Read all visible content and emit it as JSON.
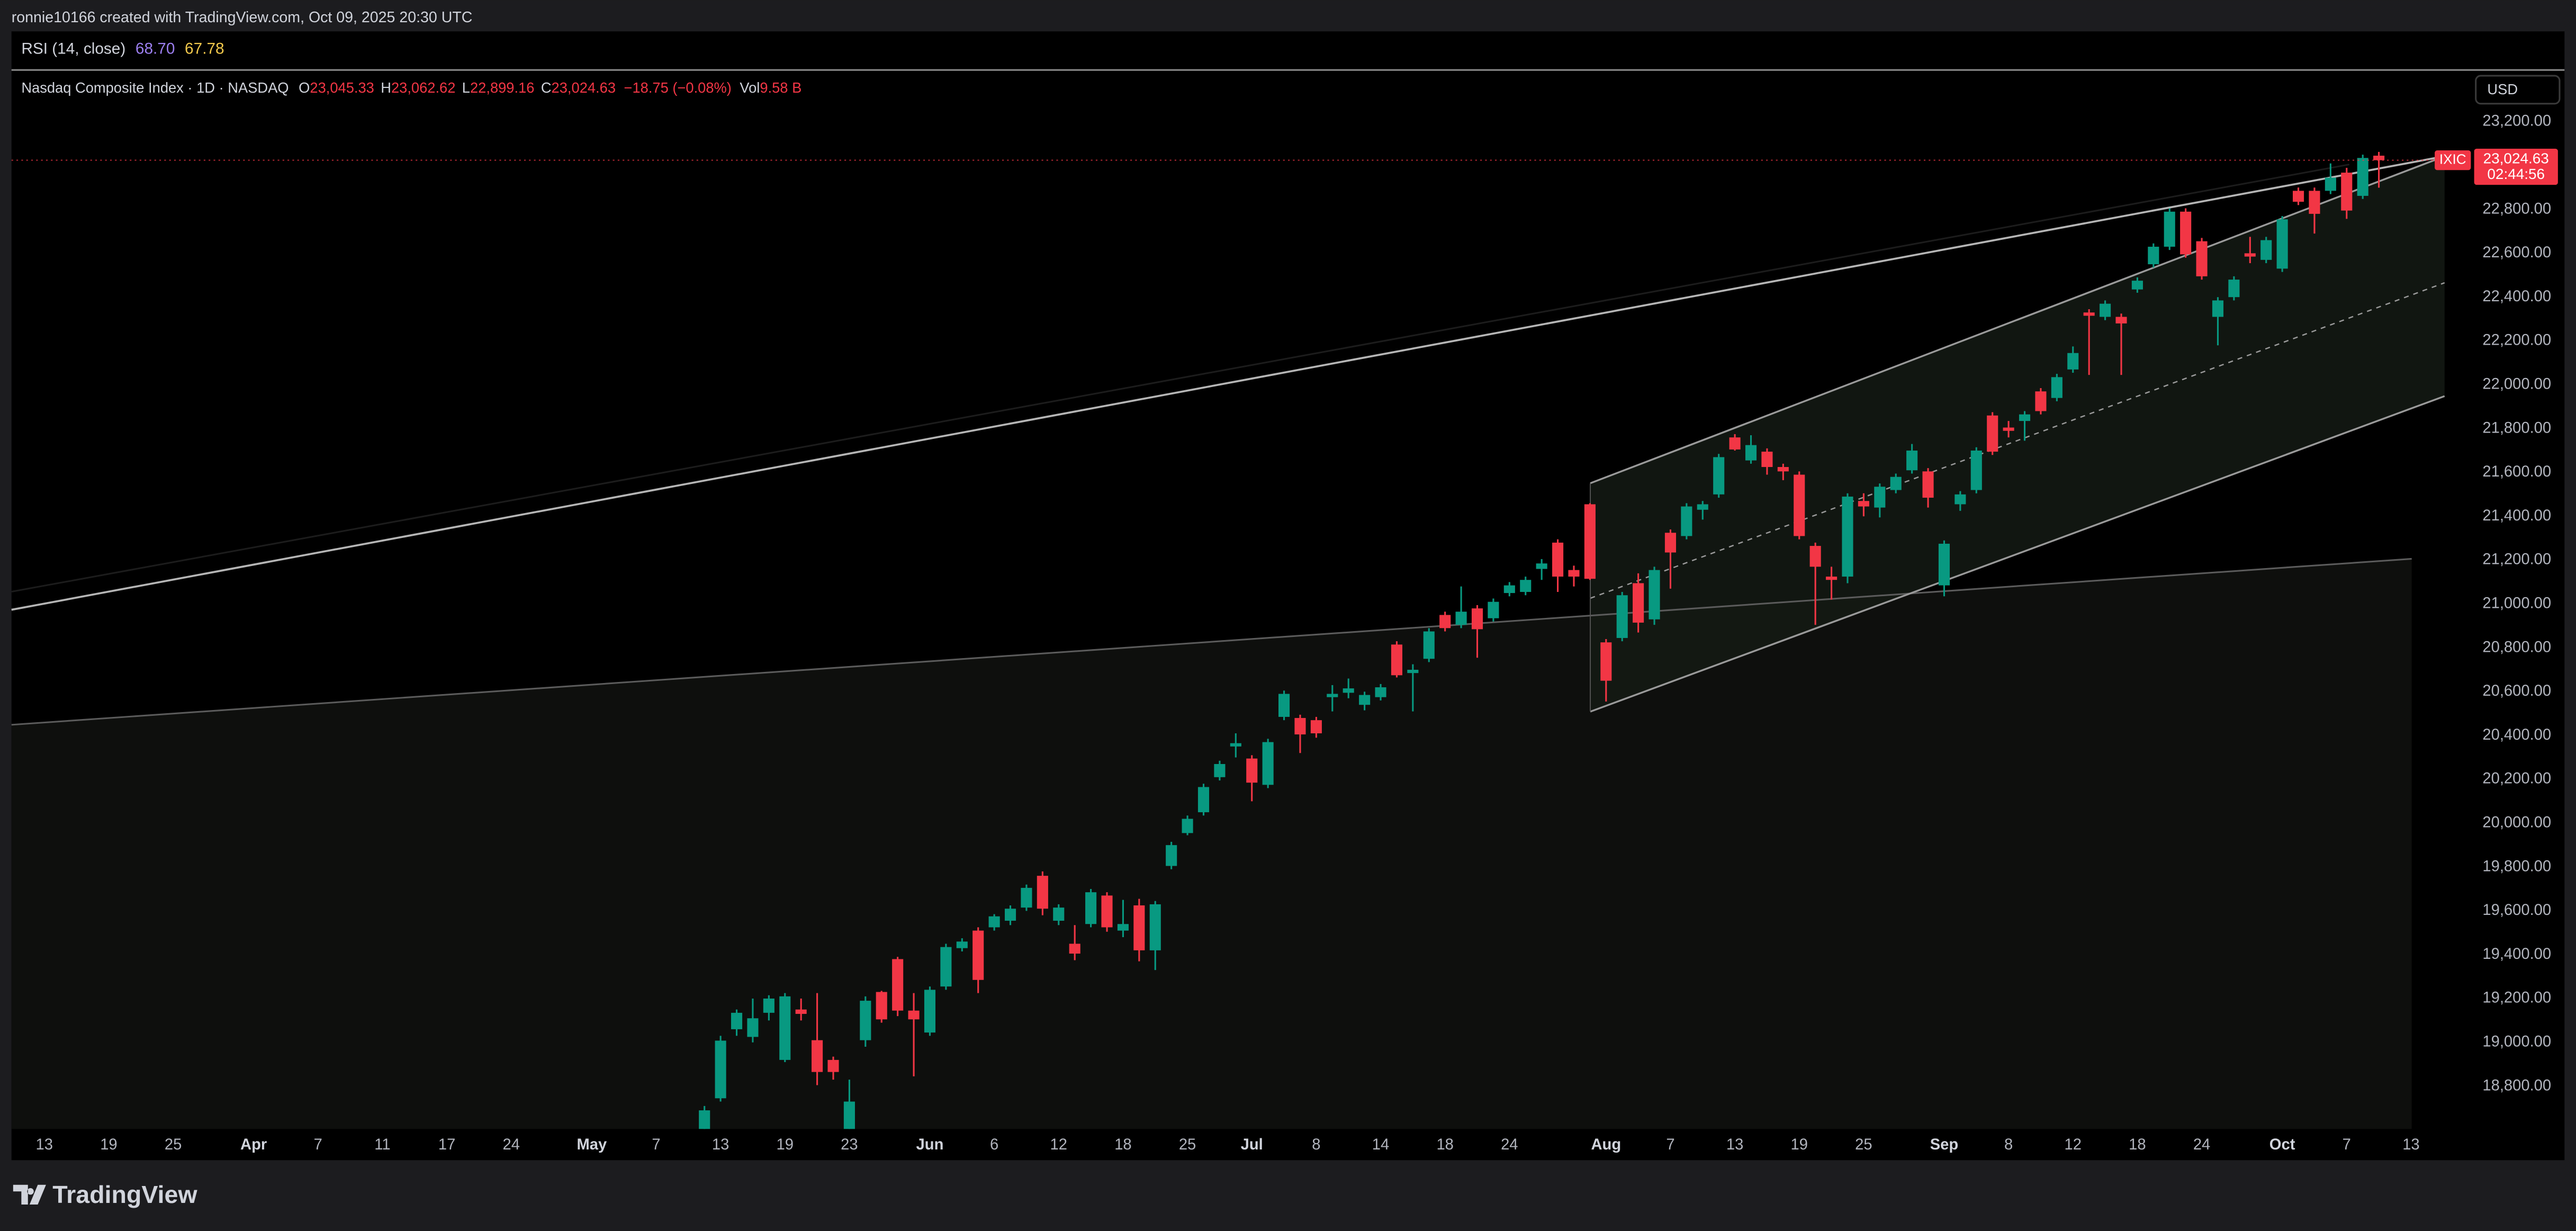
{
  "attribution": "ronnie10166 created with TradingView.com, Oct 09, 2025 20:30 UTC",
  "indicator": {
    "name": "RSI (14, close)",
    "values": [
      "68.70",
      "67.78"
    ]
  },
  "currency": "USD",
  "brand": "TradingView",
  "chart_data": {
    "type": "candlestick",
    "title": "Nasdaq Composite Index · 1D · NASDAQ",
    "legend": [
      {
        "key": "O",
        "value": "23,045.33"
      },
      {
        "key": "H",
        "value": "23,062.62"
      },
      {
        "key": "L",
        "value": "22,899.16"
      },
      {
        "key": "C",
        "value": "23,024.63"
      }
    ],
    "change": "−18.75 (−0.08%)",
    "volume": {
      "key": "Vol",
      "value": "9.58 B"
    },
    "price_tag": {
      "symbol": "IXIC",
      "price": "23,024.63",
      "countdown": "02:44:56"
    },
    "up_color": "#089981",
    "down_color": "#f23645",
    "grid": false,
    "ylim": [
      18605,
      23425
    ],
    "yticks": [
      {
        "value": 18800,
        "label": "18,800.00"
      },
      {
        "value": 19000,
        "label": "19,000.00"
      },
      {
        "value": 19200,
        "label": "19,200.00"
      },
      {
        "value": 19400,
        "label": "19,400.00"
      },
      {
        "value": 19600,
        "label": "19,600.00"
      },
      {
        "value": 19800,
        "label": "19,800.00"
      },
      {
        "value": 20000,
        "label": "20,000.00"
      },
      {
        "value": 20200,
        "label": "20,200.00"
      },
      {
        "value": 20400,
        "label": "20,400.00"
      },
      {
        "value": 20600,
        "label": "20,600.00"
      },
      {
        "value": 20800,
        "label": "20,800.00"
      },
      {
        "value": 21000,
        "label": "21,000.00"
      },
      {
        "value": 21200,
        "label": "21,200.00"
      },
      {
        "value": 21400,
        "label": "21,400.00"
      },
      {
        "value": 21600,
        "label": "21,600.00"
      },
      {
        "value": 21800,
        "label": "21,800.00"
      },
      {
        "value": 22000,
        "label": "22,000.00"
      },
      {
        "value": 22200,
        "label": "22,200.00"
      },
      {
        "value": 22400,
        "label": "22,400.00"
      },
      {
        "value": 22600,
        "label": "22,600.00"
      },
      {
        "value": 22800,
        "label": "22,800.00"
      },
      {
        "value": 23000,
        "label": "23,000.00"
      },
      {
        "value": 23200,
        "label": "23,200.00"
      }
    ],
    "categories": [
      "13",
      null,
      null,
      null,
      "19",
      null,
      null,
      null,
      "25",
      null,
      null,
      null,
      null,
      "Apr",
      null,
      null,
      null,
      "7",
      null,
      null,
      null,
      "11",
      null,
      null,
      null,
      "17",
      null,
      null,
      null,
      "24",
      null,
      null,
      null,
      null,
      "May",
      null,
      null,
      null,
      "7",
      null,
      null,
      null,
      "13",
      null,
      null,
      null,
      "19",
      null,
      null,
      null,
      "23",
      null,
      null,
      null,
      null,
      "Jun",
      null,
      null,
      null,
      "6",
      null,
      null,
      null,
      "12",
      null,
      null,
      null,
      "18",
      null,
      null,
      null,
      "25",
      null,
      null,
      null,
      "Jul",
      null,
      null,
      null,
      "8",
      null,
      null,
      null,
      "14",
      null,
      null,
      null,
      "18",
      null,
      null,
      null,
      "24",
      null,
      null,
      null,
      null,
      null,
      "Aug",
      null,
      null,
      null,
      "7",
      null,
      null,
      null,
      "13",
      null,
      null,
      null,
      "19",
      null,
      null,
      null,
      "25",
      null,
      null,
      null,
      null,
      "Sep",
      null,
      null,
      null,
      "8",
      null,
      null,
      null,
      "12",
      null,
      null,
      null,
      "18",
      null,
      null,
      null,
      "24",
      null,
      null,
      null,
      null,
      "Oct",
      null,
      null,
      null,
      "7",
      null,
      null,
      null,
      "13"
    ],
    "open": [
      null,
      null,
      null,
      null,
      null,
      null,
      null,
      null,
      null,
      null,
      null,
      null,
      null,
      null,
      null,
      null,
      null,
      null,
      null,
      null,
      null,
      null,
      null,
      null,
      null,
      null,
      null,
      null,
      null,
      null,
      null,
      null,
      null,
      null,
      null,
      null,
      null,
      null,
      null,
      null,
      null,
      18500,
      18745,
      19060,
      19025,
      19135,
      18920,
      19150,
      19010,
      18920,
      18580,
      19010,
      19230,
      19380,
      19145,
      19045,
      19255,
      19430,
      19510,
      19525,
      19555,
      19615,
      19760,
      19555,
      19450,
      19540,
      19670,
      19510,
      19625,
      19420,
      19805,
      19955,
      20050,
      20210,
      20350,
      20295,
      20175,
      20485,
      20480,
      20470,
      20575,
      20595,
      20540,
      20575,
      20815,
      20685,
      20750,
      20950,
      20905,
      20980,
      20935,
      21050,
      21055,
      21160,
      21280,
      21155,
      21455,
      20825,
      20845,
      21095,
      20930,
      21325,
      21310,
      21430,
      21500,
      21760,
      21655,
      21695,
      21625,
      21590,
      21265,
      21125,
      21125,
      21470,
      21440,
      21520,
      21610,
      21605,
      21085,
      21455,
      21520,
      21860,
      21805,
      21835,
      21970,
      21940,
      22070,
      22330,
      22310,
      22310,
      22435,
      22550,
      22630,
      22790,
      22655,
      22310,
      22400,
      22600,
      22570,
      22530,
      22885,
      22885,
      22885,
      22968,
      22862,
      23045.33,
      null,
      null
    ],
    "high": [
      null,
      null,
      null,
      null,
      null,
      null,
      null,
      null,
      null,
      null,
      null,
      null,
      null,
      null,
      null,
      null,
      null,
      null,
      null,
      null,
      null,
      null,
      null,
      null,
      null,
      null,
      null,
      null,
      null,
      null,
      null,
      null,
      null,
      null,
      null,
      null,
      null,
      null,
      null,
      null,
      null,
      18710,
      19030,
      19150,
      19200,
      19215,
      19225,
      19200,
      19225,
      18935,
      18830,
      19210,
      19235,
      19390,
      19225,
      19255,
      19450,
      19475,
      19525,
      19585,
      19625,
      19720,
      19780,
      19630,
      19535,
      19700,
      19685,
      19650,
      19655,
      19645,
      19915,
      20035,
      20180,
      20285,
      20410,
      20310,
      20385,
      20605,
      20495,
      20485,
      20630,
      20660,
      20600,
      20635,
      20830,
      20725,
      20890,
      20965,
      21080,
      20995,
      21025,
      21100,
      21125,
      21205,
      21295,
      21175,
      21460,
      20840,
      21055,
      21140,
      21170,
      21340,
      21460,
      21470,
      21685,
      21775,
      21770,
      21710,
      21640,
      21605,
      21280,
      21170,
      21505,
      21505,
      21550,
      21595,
      21730,
      21620,
      21290,
      21515,
      21715,
      21875,
      21835,
      21880,
      21985,
      22050,
      22175,
      22345,
      22385,
      22325,
      22490,
      22645,
      22805,
      22805,
      22670,
      22400,
      22495,
      22675,
      22675,
      22770,
      22900,
      22900,
      23010,
      22990,
      23050,
      23062.62,
      null,
      null
    ],
    "low": [
      null,
      null,
      null,
      null,
      null,
      null,
      null,
      null,
      null,
      null,
      null,
      null,
      null,
      null,
      null,
      null,
      null,
      null,
      null,
      null,
      null,
      null,
      null,
      null,
      null,
      null,
      null,
      null,
      null,
      null,
      null,
      null,
      null,
      null,
      null,
      null,
      null,
      null,
      null,
      null,
      null,
      18450,
      18730,
      19030,
      19000,
      19100,
      18910,
      19100,
      18805,
      18830,
      18530,
      18980,
      19090,
      19120,
      18845,
      19030,
      19240,
      19415,
      19225,
      19510,
      19535,
      19600,
      19580,
      19535,
      19375,
      19525,
      19505,
      19480,
      19370,
      19330,
      19790,
      19945,
      20035,
      20195,
      20300,
      20100,
      20160,
      20470,
      20320,
      20390,
      20510,
      20570,
      20515,
      20560,
      20665,
      20510,
      20735,
      20875,
      20890,
      20755,
      20920,
      21035,
      21040,
      21110,
      21055,
      21080,
      21110,
      20555,
      20830,
      20870,
      20905,
      21070,
      21295,
      21385,
      21485,
      21700,
      21640,
      21590,
      21565,
      21295,
      20905,
      21020,
      21095,
      21400,
      21395,
      21505,
      21595,
      21440,
      21035,
      21425,
      21505,
      21680,
      21760,
      21745,
      21865,
      21925,
      22055,
      22045,
      22295,
      22045,
      22420,
      22535,
      22615,
      22580,
      22480,
      22180,
      22385,
      22555,
      22555,
      22515,
      22820,
      22690,
      22870,
      22757,
      22848,
      22899.16,
      null,
      null
    ],
    "close": [
      null,
      null,
      null,
      null,
      null,
      null,
      null,
      null,
      null,
      null,
      null,
      null,
      null,
      null,
      null,
      null,
      null,
      null,
      null,
      null,
      null,
      null,
      null,
      null,
      null,
      null,
      null,
      null,
      null,
      null,
      null,
      null,
      null,
      null,
      null,
      null,
      null,
      null,
      null,
      null,
      null,
      18690,
      19008,
      19135,
      19110,
      19200,
      19210,
      19130,
      18865,
      18865,
      18730,
      19190,
      19105,
      19145,
      19105,
      19240,
      19435,
      19460,
      19285,
      19575,
      19610,
      19705,
      19610,
      19615,
      19405,
      19685,
      19525,
      19540,
      19420,
      19630,
      19900,
      20020,
      20165,
      20270,
      20365,
      20185,
      20370,
      20590,
      20405,
      20410,
      20590,
      20615,
      20585,
      20620,
      20675,
      20700,
      20875,
      20890,
      20965,
      20885,
      21010,
      21085,
      21110,
      21185,
      21125,
      21125,
      21115,
      20650,
      21040,
      20915,
      21155,
      21235,
      21445,
      21455,
      21670,
      21705,
      21725,
      21625,
      21605,
      21310,
      21170,
      21110,
      21490,
      21445,
      21535,
      21580,
      21700,
      21485,
      21275,
      21500,
      21700,
      21695,
      21790,
      21865,
      21880,
      22035,
      22145,
      22315,
      22370,
      22280,
      22475,
      22630,
      22790,
      22595,
      22495,
      22385,
      22480,
      22585,
      22660,
      22755,
      22835,
      22780,
      22945,
      22795,
      23035,
      23024.63,
      null,
      null
    ]
  }
}
